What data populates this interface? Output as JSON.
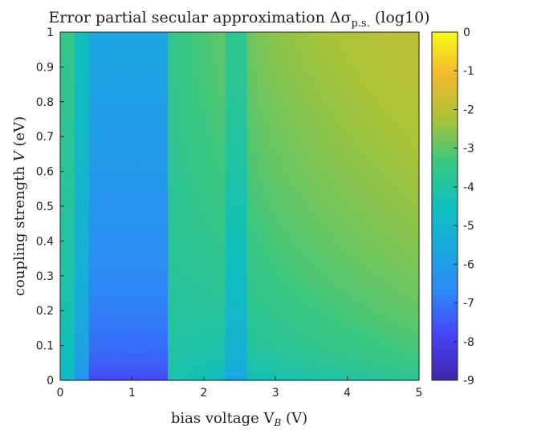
{
  "chart_data": {
    "type": "heatmap",
    "title_prefix": "Error partial secular approximation Δσ",
    "title_subscript": "p.s.",
    "title_suffix": " (log10)",
    "xlabel_prefix": "bias voltage V",
    "xlabel_subscript": "B",
    "xlabel_suffix": " (V)",
    "ylabel_prefix": "coupling strength ",
    "ylabel_symbol": "V",
    "ylabel_suffix": " (eV)",
    "xlim": [
      0,
      5
    ],
    "ylim": [
      0,
      1
    ],
    "xticks": [
      "0",
      "1",
      "2",
      "3",
      "4",
      "5"
    ],
    "yticks": [
      "0",
      "0.1",
      "0.2",
      "0.3",
      "0.4",
      "0.5",
      "0.6",
      "0.7",
      "0.8",
      "0.9",
      "1"
    ],
    "colorbar": {
      "range": [
        -9,
        0
      ],
      "ticks": [
        "0",
        "-1",
        "-2",
        "-3",
        "-4",
        "-5",
        "-6",
        "-7",
        "-8",
        "-9"
      ],
      "colormap": "parula"
    },
    "approximate_values_description_note": "",
    "approximate_column_profile": {
      "x_bands": [
        [
          0,
          0.2
        ],
        [
          0.2,
          0.4
        ],
        [
          0.4,
          1.5
        ],
        [
          1.5,
          2.3
        ],
        [
          2.3,
          2.6
        ],
        [
          2.6,
          5
        ]
      ],
      "value_at_top": [
        -3.5,
        -4.5,
        -5.7,
        -3.0,
        -3.6,
        -2.0
      ],
      "value_at_bottom": [
        -5.0,
        -6.5,
        -8.0,
        -4.5,
        -6.0,
        -4.2
      ]
    }
  }
}
